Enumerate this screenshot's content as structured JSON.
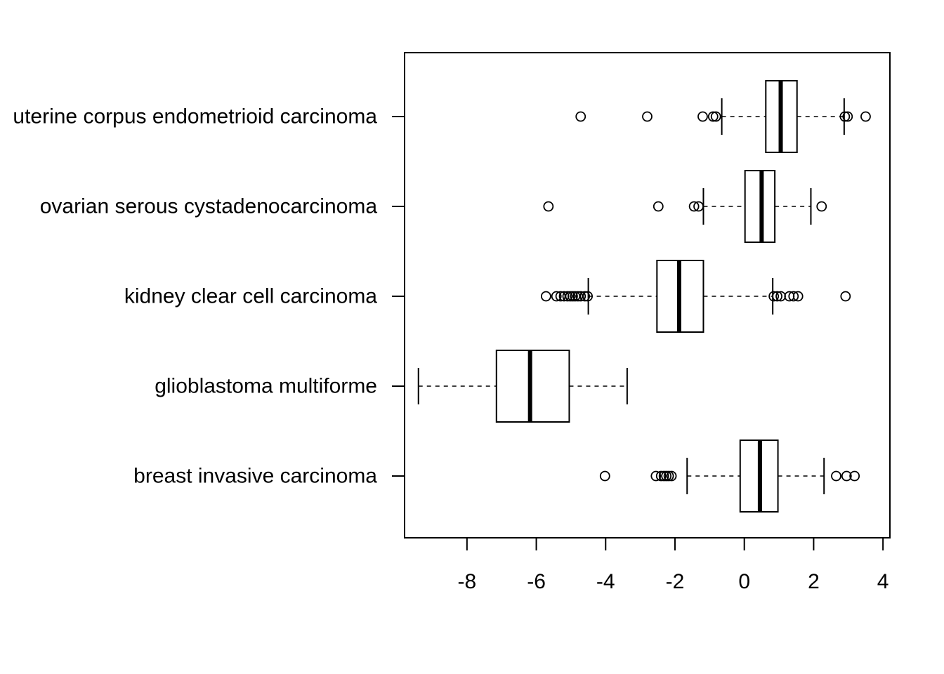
{
  "chart_data": {
    "type": "boxplot",
    "orientation": "horizontal",
    "title": "",
    "xlabel": "",
    "ylabel": "",
    "xlim": [
      -9.8,
      4.2
    ],
    "x_ticks": [
      -8,
      -6,
      -4,
      -2,
      0,
      2,
      4
    ],
    "x_tick_labels": [
      "-8",
      "-6",
      "-4",
      "-2",
      "0",
      "2",
      "4"
    ],
    "grid": false,
    "legend": "none",
    "categories": [
      "breast invasive carcinoma",
      "glioblastoma multiforme",
      "kidney clear cell carcinoma",
      "ovarian serous cystadenocarcinoma",
      "uterine corpus endometrioid carcinoma"
    ],
    "boxes": [
      {
        "category": "breast invasive carcinoma",
        "whisker_low": -1.65,
        "q1": -0.12,
        "median": 0.45,
        "q3": 0.97,
        "whisker_high": 2.3,
        "outliers": [
          -4.02,
          -2.55,
          -2.4,
          -2.32,
          -2.25,
          -2.18,
          -2.1,
          2.65,
          2.95,
          3.18
        ]
      },
      {
        "category": "glioblastoma multiforme",
        "whisker_low": -9.4,
        "q1": -7.15,
        "median": -6.18,
        "q3": -5.05,
        "whisker_high": -3.38,
        "outliers": []
      },
      {
        "category": "kidney clear cell carcinoma",
        "whisker_low": -4.5,
        "q1": -2.52,
        "median": -1.88,
        "q3": -1.18,
        "whisker_high": 0.82,
        "outliers": [
          -5.72,
          -5.42,
          -5.3,
          -5.2,
          -5.1,
          -5.02,
          -4.95,
          -4.88,
          -4.8,
          -4.72,
          -4.6,
          -4.52,
          0.85,
          0.95,
          1.05,
          1.3,
          1.42,
          1.55,
          2.92
        ]
      },
      {
        "category": "ovarian serous cystadenocarcinoma",
        "whisker_low": -1.18,
        "q1": 0.02,
        "median": 0.5,
        "q3": 0.88,
        "whisker_high": 1.92,
        "outliers": [
          -5.65,
          -2.48,
          -1.45,
          -1.32,
          2.23
        ]
      },
      {
        "category": "uterine corpus endometrioid carcinoma",
        "whisker_low": -0.65,
        "q1": 0.62,
        "median": 1.05,
        "q3": 1.52,
        "whisker_high": 2.88,
        "outliers": [
          -4.72,
          -2.8,
          -1.2,
          -0.9,
          -0.82,
          2.9,
          2.98,
          3.5
        ]
      }
    ]
  }
}
